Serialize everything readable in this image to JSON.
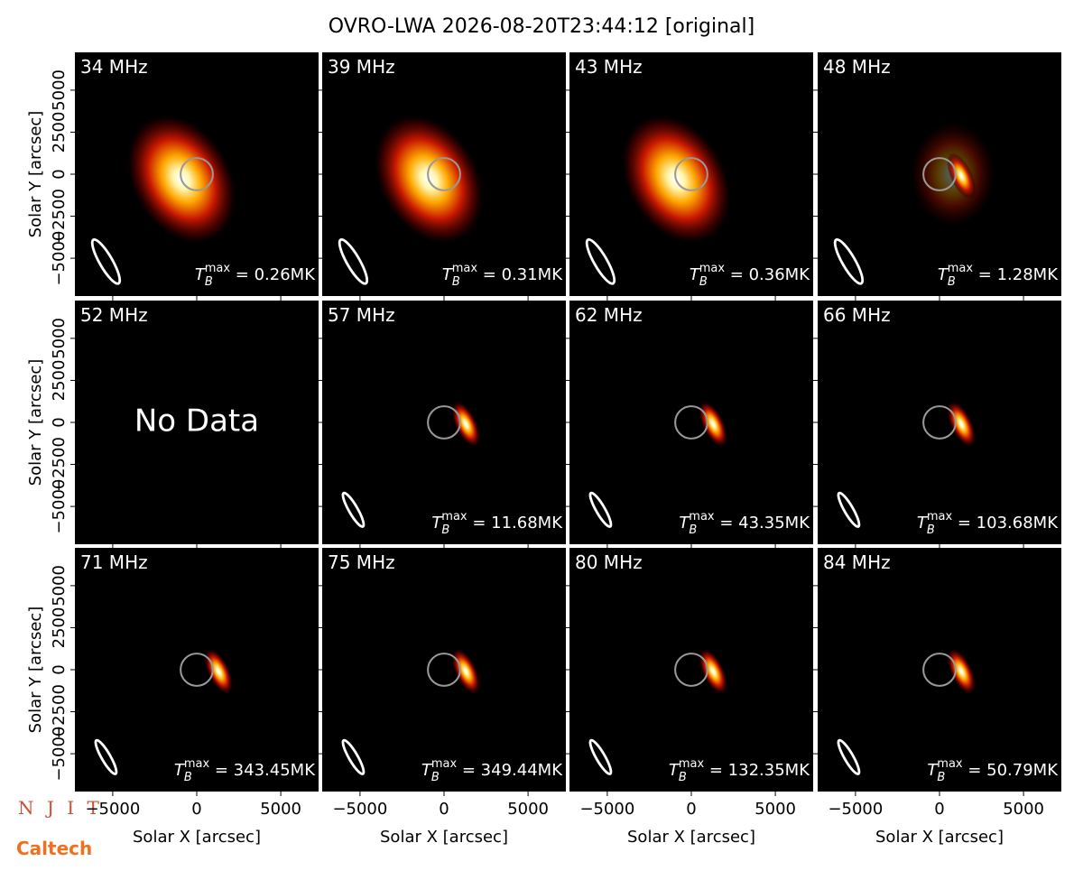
{
  "figure": {
    "title": "OVRO-LWA 2026-08-20T23:44:12 [original]",
    "xlabel": "Solar X [arcsec]",
    "ylabel": "Solar Y [arcsec]",
    "xlim": [
      -7250,
      7250
    ],
    "ylim": [
      -7250,
      7250
    ],
    "xticks": [
      {
        "value": -5000,
        "label": "−5000"
      },
      0,
      5000
    ],
    "yticks": [
      {
        "value": -5000,
        "label": "−5000"
      },
      {
        "value": -2500,
        "label": "−2500"
      },
      0,
      2500,
      5000
    ],
    "logos": [
      "N J I T",
      "Caltech"
    ]
  },
  "chart_data": [
    {
      "type": "image",
      "title": "34 MHz",
      "annotation": {
        "base": "T",
        "sub": "B",
        "sup": "max",
        "text": " = 0.26MK"
      }
    },
    {
      "type": "image",
      "title": "39 MHz",
      "annotation": {
        "base": "T",
        "sub": "B",
        "sup": "max",
        "text": " = 0.31MK"
      }
    },
    {
      "type": "image",
      "title": "43 MHz",
      "annotation": {
        "base": "T",
        "sub": "B",
        "sup": "max",
        "text": " = 0.36MK"
      }
    },
    {
      "type": "image",
      "title": "48 MHz",
      "annotation": {
        "base": "T",
        "sub": "B",
        "sup": "max",
        "text": " = 1.28MK"
      }
    },
    {
      "type": "image",
      "title": "52 MHz",
      "message": "No Data"
    },
    {
      "type": "image",
      "title": "57 MHz",
      "annotation": {
        "base": "T",
        "sub": "B",
        "sup": "max",
        "text": " = 11.68MK"
      }
    },
    {
      "type": "image",
      "title": "62 MHz",
      "annotation": {
        "base": "T",
        "sub": "B",
        "sup": "max",
        "text": " = 43.35MK"
      }
    },
    {
      "type": "image",
      "title": "66 MHz",
      "annotation": {
        "base": "T",
        "sub": "B",
        "sup": "max",
        "text": " = 103.68MK"
      }
    },
    {
      "type": "image",
      "title": "71 MHz",
      "annotation": {
        "base": "T",
        "sub": "B",
        "sup": "max",
        "text": " = 343.45MK"
      }
    },
    {
      "type": "image",
      "title": "75 MHz",
      "annotation": {
        "base": "T",
        "sub": "B",
        "sup": "max",
        "text": " = 349.44MK"
      }
    },
    {
      "type": "image",
      "title": "80 MHz",
      "annotation": {
        "base": "T",
        "sub": "B",
        "sup": "max",
        "text": " = 132.35MK"
      }
    },
    {
      "type": "image",
      "title": "84 MHz",
      "annotation": {
        "base": "T",
        "sub": "B",
        "sup": "max",
        "text": " = 50.79MK"
      }
    }
  ]
}
